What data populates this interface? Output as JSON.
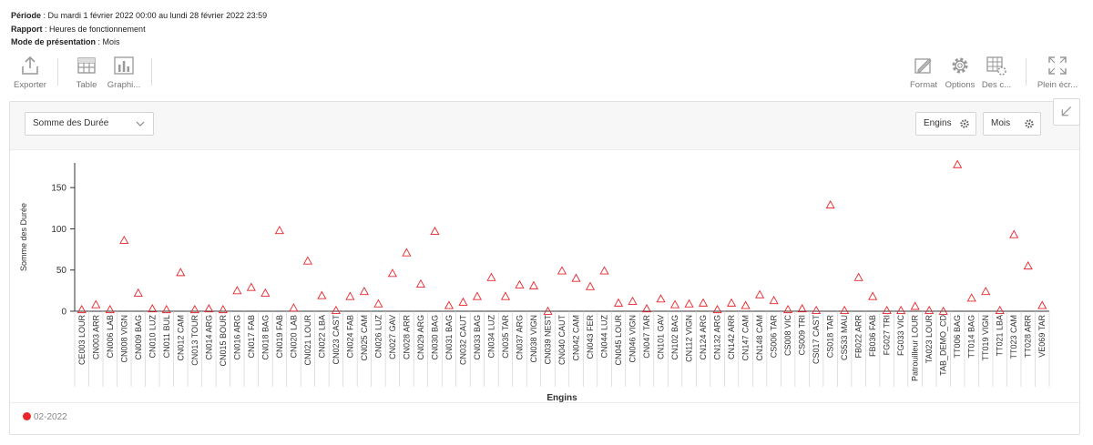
{
  "meta": {
    "period_label": "Période",
    "period_value": " : Du mardi 1 février 2022 00:00 au lundi 28 février 2022 23:59",
    "report_label": "Rapport",
    "report_value": " : Heures de fonctionnement",
    "mode_label": "Mode de présentation",
    "mode_value": " : Mois"
  },
  "toolbar": {
    "export_label": "Exporter",
    "table_label": "Table",
    "chart_label": "Graphi...",
    "format_label": "Format",
    "options_label": "Options",
    "columns_label": "Des c...",
    "fullscreen_label": "Plein écr..."
  },
  "panel": {
    "measure_select": "Somme des Durée",
    "x_axis_button": "Engins",
    "period_button": "Mois"
  },
  "colors": {
    "series": "#e8262b",
    "axis": "#333333",
    "grid": "#e6e6e6"
  },
  "chart_data": {
    "type": "scatter",
    "marker": "triangle-hollow",
    "xlabel": "Engins",
    "ylabel": "Somme des Durée",
    "ylim": [
      0,
      180
    ],
    "yticks": [
      0,
      50,
      100,
      150
    ],
    "grid": false,
    "legend": "bottom-left",
    "categories": [
      "CE003 LOUR",
      "CN003 ARR",
      "CN006 LAB",
      "CN008 VIGN",
      "CN009 BAG",
      "CN010 LUZ",
      "CN011 BUL",
      "CN012 CAM",
      "CN013 TOUR",
      "CN014 ARG",
      "CN015 BOUR",
      "CN016 ARG",
      "CN017 FAB",
      "CN018 BAG",
      "CN019 FAB",
      "CN020 LAB",
      "CN021 LOUR",
      "CN022 LBA",
      "CN023 CAST",
      "CN024 FAB",
      "CN025 CAM",
      "CN026 LUZ",
      "CN027 GAV",
      "CN028 ARR",
      "CN029 ARG",
      "CN030 BAG",
      "CN031 BAG",
      "CN032 CAUT",
      "CN033 BAG",
      "CN034 LUZ",
      "CN035 TAR",
      "CN037 ARG",
      "CN038 VIGN",
      "CN039 NEST",
      "CN040 CAUT",
      "CN042 CAM",
      "CN043 FER",
      "CN044 LUZ",
      "CN045 LOUR",
      "CN046 VIGN",
      "CN047 TAR",
      "CN101 GAV",
      "CN102 BAG",
      "CN112 VIGN",
      "CN124 ARG",
      "CN132 ARG",
      "CN142 ARR",
      "CN147 CAM",
      "CN148 CAM",
      "CS006 TAR",
      "CS008 VIC",
      "CS009 TRI",
      "CS017 CAST",
      "CS018 TAR",
      "CS533 MAU",
      "FB022 ARR",
      "FB036 FAB",
      "FG027 TRI",
      "FG033 VIC",
      "Patrouilleur LOUR",
      "TA023 LOUR",
      "TAB_DEMO_CD",
      "TT006 BAG",
      "TT014 BAG",
      "TT019 VIGN",
      "TT021 LBA",
      "TT023 CAM",
      "TT028 ARR",
      "VE069 TAR"
    ],
    "series": [
      {
        "name": "02-2022",
        "values": [
          2,
          8,
          2,
          86,
          22,
          3,
          2,
          47,
          2,
          3,
          2,
          25,
          29,
          22,
          98,
          4,
          61,
          19,
          1,
          18,
          24,
          9,
          46,
          71,
          33,
          97,
          7,
          11,
          18,
          41,
          18,
          32,
          31,
          0,
          49,
          40,
          30,
          49,
          10,
          12,
          3,
          15,
          8,
          9,
          10,
          2,
          10,
          7,
          20,
          13,
          2,
          3,
          1,
          129,
          1,
          41,
          18,
          1,
          1,
          6,
          1,
          0,
          178,
          16,
          24,
          1,
          93,
          55,
          7
        ]
      }
    ]
  }
}
